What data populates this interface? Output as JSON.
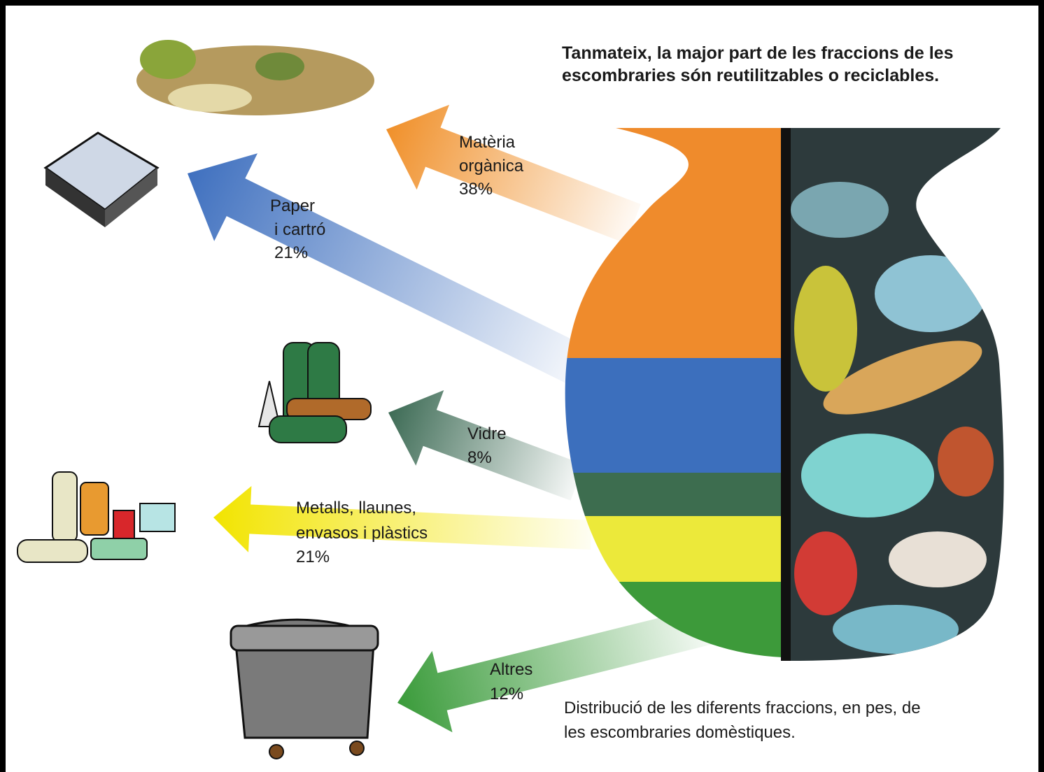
{
  "title": [
    "Tanmateix, la major part de les fraccions de les",
    "escombraries són reutilitzables o reciclables."
  ],
  "caption": [
    "Distribució de les diferents fraccions, en pes, de",
    "les escombraries domèstiques."
  ],
  "fractions": [
    {
      "label": [
        "Matèria",
        "orgànica"
      ],
      "percent": "38%"
    },
    {
      "label": [
        "Paper",
        "i cartró"
      ],
      "percent": "21%"
    },
    {
      "label": [
        "Vidre"
      ],
      "percent": "8%"
    },
    {
      "label": [
        "Metalls, llaunes,",
        "envasos i plàstics"
      ],
      "percent": "21%"
    },
    {
      "label": [
        "Altres"
      ],
      "percent": "12%"
    }
  ]
}
